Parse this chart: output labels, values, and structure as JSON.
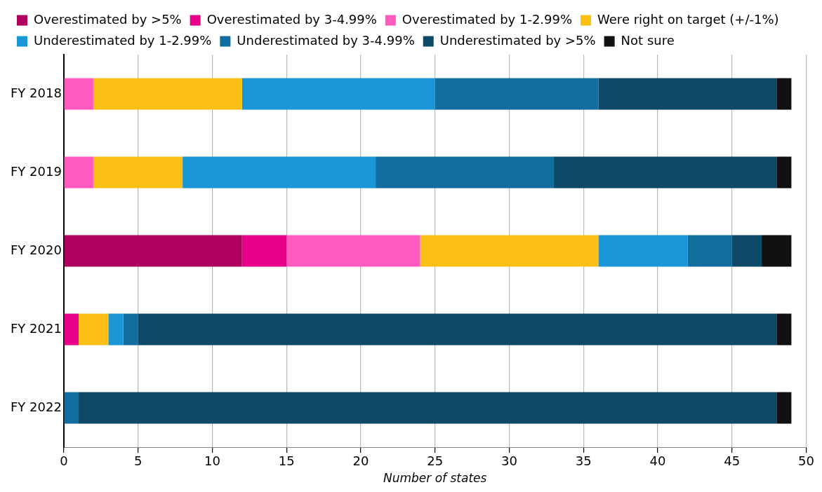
{
  "chart_data": {
    "type": "bar",
    "orientation": "horizontal",
    "stacked": true,
    "xlabel": "Number of states",
    "categories": [
      "FY 2018",
      "FY 2019",
      "FY 2020",
      "FY 2021",
      "FY 2022"
    ],
    "series": [
      {
        "name": "Overestimated by >5%",
        "color": "#b0005f",
        "values": [
          0,
          0,
          12,
          0,
          0
        ]
      },
      {
        "name": "Overestimated by 3-4.99%",
        "color": "#e8008a",
        "values": [
          0,
          0,
          3,
          1,
          0
        ]
      },
      {
        "name": "Overestimated by 1-2.99%",
        "color": "#ff5bbf",
        "values": [
          2,
          2,
          9,
          0,
          0
        ]
      },
      {
        "name": "Were right on target (+/-1%)",
        "color": "#fcbf14",
        "values": [
          10,
          6,
          12,
          2,
          0
        ]
      },
      {
        "name": "Underestimated by 1-2.99%",
        "color": "#1a96d6",
        "values": [
          13,
          13,
          6,
          1,
          0
        ]
      },
      {
        "name": "Underestimated by 3-4.99%",
        "color": "#116e9f",
        "values": [
          11,
          12,
          3,
          1,
          1
        ]
      },
      {
        "name": "Underestimated by >5%",
        "color": "#0c4a68",
        "values": [
          12,
          15,
          2,
          43,
          47
        ]
      },
      {
        "name": "Not sure",
        "color": "#111111",
        "values": [
          1,
          1,
          2,
          1,
          1
        ]
      }
    ],
    "xlim": [
      0,
      50
    ],
    "xticks": [
      0,
      5,
      10,
      15,
      20,
      25,
      30,
      35,
      40,
      45,
      50
    ],
    "grid": "x",
    "legend": "top"
  }
}
